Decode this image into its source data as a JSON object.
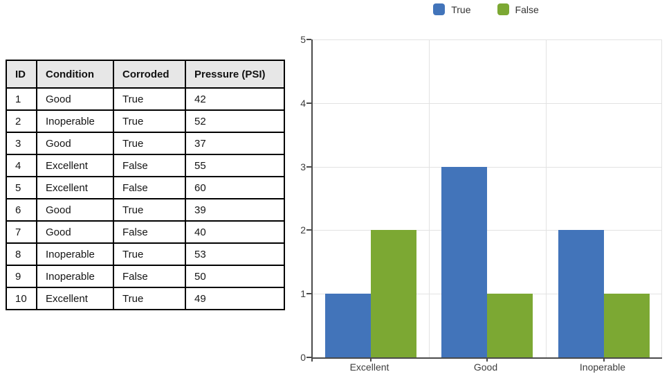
{
  "table": {
    "headers": [
      "ID",
      "Condition",
      "Corroded",
      "Pressure (PSI)"
    ],
    "rows": [
      [
        "1",
        "Good",
        "True",
        "42"
      ],
      [
        "2",
        "Inoperable",
        "True",
        "52"
      ],
      [
        "3",
        "Good",
        "True",
        "37"
      ],
      [
        "4",
        "Excellent",
        "False",
        "55"
      ],
      [
        "5",
        "Excellent",
        "False",
        "60"
      ],
      [
        "6",
        "Good",
        "True",
        "39"
      ],
      [
        "7",
        "Good",
        "False",
        "40"
      ],
      [
        "8",
        "Inoperable",
        "True",
        "53"
      ],
      [
        "9",
        "Inoperable",
        "False",
        "50"
      ],
      [
        "10",
        "Excellent",
        "True",
        "49"
      ]
    ]
  },
  "chart_data": {
    "type": "bar",
    "title": "",
    "categories": [
      "Excellent",
      "Good",
      "Inoperable"
    ],
    "series": [
      {
        "name": "True",
        "color": "#4274ba",
        "values": [
          1,
          3,
          2
        ]
      },
      {
        "name": "False",
        "color": "#7ca833",
        "values": [
          2,
          1,
          1
        ]
      }
    ],
    "xlabel": "",
    "ylabel": "",
    "ylim": [
      0,
      5
    ],
    "y_ticks": [
      "0",
      "1",
      "2",
      "3",
      "4",
      "5"
    ],
    "grid": true,
    "legend_position": "top",
    "colors": {
      "axis": "#4a4a4a",
      "gridline": "#e2e2e2",
      "tick_label": "#3d3d3d",
      "table_header_bg": "#e7e7e7",
      "table_border": "#000000"
    }
  }
}
